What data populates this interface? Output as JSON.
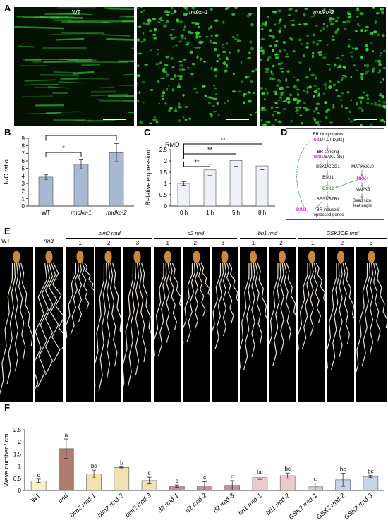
{
  "panel_labels": {
    "a": "A",
    "b": "B",
    "c": "C",
    "d": "D",
    "e": "E",
    "f": "F"
  },
  "panel_a": {
    "images": [
      {
        "label": "WT",
        "pattern": "streaks"
      },
      {
        "label": "rmdko-1",
        "pattern": "dots"
      },
      {
        "label": "rmdko-2",
        "pattern": "dense"
      }
    ],
    "colors": {
      "background": "#031203",
      "signal": "#3cd23c"
    }
  },
  "chart_data": [
    {
      "id": "B",
      "type": "bar",
      "ylabel": "N/C ratio",
      "categories": [
        "WT",
        "rmdko-1",
        "rmdko-2"
      ],
      "values": [
        3.85,
        5.55,
        7.1
      ],
      "errors": [
        0.3,
        0.6,
        1.2
      ],
      "ylim": [
        0,
        9
      ],
      "yticks": [
        "0",
        "1",
        "2",
        "3",
        "4",
        "5",
        "6",
        "7",
        "8",
        "9"
      ],
      "significance": [
        {
          "from": 0,
          "to": 1,
          "label": "*"
        },
        {
          "from": 0,
          "to": 2,
          "label": "*"
        }
      ],
      "color": "#a9b9d4"
    },
    {
      "id": "C",
      "type": "bar",
      "title": "RMD",
      "ylabel": "Relative expression",
      "categories": [
        "0 h",
        "1 h",
        "5 h",
        "8 h"
      ],
      "values": [
        1.0,
        1.6,
        2.02,
        1.78
      ],
      "errors": [
        0.08,
        0.25,
        0.25,
        0.17
      ],
      "ylim": [
        0,
        2.5
      ],
      "yticks": [
        "0",
        "0.5",
        "1",
        "1.5",
        "2",
        "2.5"
      ],
      "significance": [
        {
          "from": 0,
          "to": 1,
          "label": "**"
        },
        {
          "from": 0,
          "to": 2,
          "label": "**"
        },
        {
          "from": 0,
          "to": 3,
          "label": "**"
        }
      ],
      "color": "#eef1f7"
    },
    {
      "id": "F",
      "type": "bar",
      "ylabel": "Wave number / cm",
      "categories": [
        "WT",
        "rmd",
        "bim2 rmd-1",
        "bim2 rmd-2",
        "bim2 rmd-3",
        "d2 rmd-1",
        "d2 rmd-2",
        "d2 rmd-3",
        "bri1 rmd-1",
        "bri1 rmd-2",
        "GSK2 rmd-1",
        "GSK2 rmd-2",
        "GSK2 rmd-3"
      ],
      "values": [
        0.4,
        1.72,
        0.68,
        0.95,
        0.41,
        0.18,
        0.19,
        0.21,
        0.53,
        0.61,
        0.15,
        0.44,
        0.58
      ],
      "errors": [
        0.07,
        0.4,
        0.16,
        0.02,
        0.14,
        0.05,
        0.17,
        0.2,
        0.07,
        0.11,
        0.15,
        0.27,
        0.05
      ],
      "letters": [
        "c",
        "a",
        "bc",
        "b",
        "c",
        "c",
        "c",
        "c",
        "bc",
        "bc",
        "c",
        "bc",
        "bc"
      ],
      "colors": [
        "#fbf1c4",
        "#b07b70",
        "#f2e1b5",
        "#f2e1b5",
        "#f2e1b5",
        "#c8919a",
        "#c8919a",
        "#c8919a",
        "#eccbcf",
        "#eccbcf",
        "#c7d4e6",
        "#c7d4e6",
        "#c7d4e6"
      ],
      "ylim": [
        0,
        2.5
      ],
      "yticks": [
        "0",
        "0.5",
        "1",
        "1.5",
        "2",
        "2.5"
      ]
    }
  ],
  "panel_d": {
    "nodes": {
      "br_bio": "BR biosynthesis",
      "d2_pre": "(",
      "d2": "D2",
      "d2_post": ",D4,CPD,etc)",
      "br_sense": "BR sensing",
      "bri1_pre": "(",
      "bri1": "BRI1",
      "bri1_post": "/BAK1 etc)",
      "bsk": "BSK1/CDG1",
      "bsu": "BSU1",
      "gsk": "GSK2",
      "bes": "BES1/BZR1",
      "genes1": "BR induced/",
      "genes2": "repressed genes",
      "bim": "BIM2",
      "mapkkk": "MAPKKK10",
      "mkk": "MKK4",
      "mapk": "MAPK6",
      "seed1": "Seed size,",
      "seed2": "leaf angle"
    },
    "colors": {
      "magenta": "#e32ad4",
      "green": "#22b022",
      "arrow": "#5b7ed6"
    }
  },
  "panel_e": {
    "wt": "WT",
    "rmd": "rmd",
    "groups": [
      {
        "label": "bim2 rmd",
        "lines": [
          "1",
          "2",
          "3"
        ]
      },
      {
        "label": "d2 rmd",
        "lines": [
          "1",
          "2",
          "3"
        ]
      },
      {
        "label": "bri1 rmd",
        "lines": [
          "1",
          "2"
        ]
      },
      {
        "label": "GSK2OE rmd",
        "lines": [
          "1",
          "2",
          "3"
        ]
      }
    ]
  }
}
